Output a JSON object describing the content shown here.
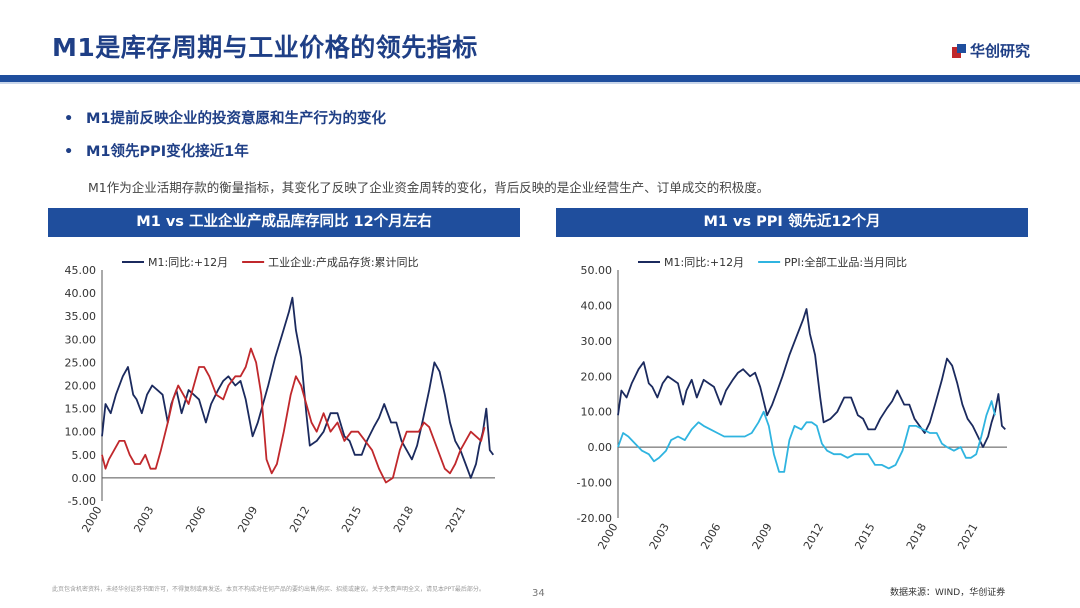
{
  "slide": {
    "title": "M1是库存周期与工业价格的领先指标",
    "brand": "华创研究",
    "bullets": [
      "M1提前反映企业的投资意愿和生产行为的变化",
      "M1领先PPI变化接近1年"
    ],
    "description": "M1作为企业活期存款的衡量指标，其变化了反映了企业资金周转的变化，背后反映的是企业经营生产、订单成交的积极度。",
    "disclaimer": "此页包含机密资料，未经华创证券书面许可，不得复制或再发送。本页不构成对任何产品的要约出售/购买、招揽或建议。关于免责声明全文，请见本PPT最后部分。",
    "page_number": "34",
    "source": "数据来源：WIND，华创证券",
    "colors": {
      "brand_blue": "#1f4e9d",
      "title_blue": "#1f3f86",
      "m1_navy": "#1b2a5e",
      "red": "#c0282c",
      "cyan": "#2fb4e0"
    }
  },
  "chart_data": [
    {
      "type": "line",
      "title": "M1 vs 工业企业产成品库存同比 12个月左右",
      "ylim": [
        -5,
        45
      ],
      "yticks": [
        -5,
        0,
        5,
        10,
        15,
        20,
        25,
        30,
        35,
        40,
        45
      ],
      "ytick_labels": [
        "-5.00",
        "0.00",
        "5.00",
        "10.00",
        "15.00",
        "20.00",
        "25.00",
        "30.00",
        "35.00",
        "40.00",
        "45.00"
      ],
      "xlim": [
        2000,
        2022.7
      ],
      "xticks": [
        2000,
        2003,
        2006,
        2009,
        2012,
        2015,
        2018,
        2021
      ],
      "xtick_labels": [
        "2000",
        "2003",
        "2006",
        "2009",
        "2012",
        "2015",
        "2018",
        "2021"
      ],
      "legend_position": "top",
      "series": [
        {
          "name": "M1:同比:+12月",
          "color": "#1b2a5e",
          "x": [
            2000.0,
            2000.2,
            2000.5,
            2000.8,
            2001.2,
            2001.5,
            2001.8,
            2002.0,
            2002.3,
            2002.6,
            2002.9,
            2003.2,
            2003.5,
            2003.8,
            2004.0,
            2004.3,
            2004.6,
            2005.0,
            2005.3,
            2005.6,
            2006.0,
            2006.3,
            2006.7,
            2007.0,
            2007.3,
            2007.7,
            2008.0,
            2008.3,
            2008.7,
            2009.0,
            2009.3,
            2009.6,
            2010.0,
            2010.4,
            2010.8,
            2011.0,
            2011.2,
            2011.5,
            2011.8,
            2012.0,
            2012.4,
            2012.8,
            2013.2,
            2013.6,
            2014.0,
            2014.3,
            2014.6,
            2015.0,
            2015.3,
            2015.7,
            2016.0,
            2016.3,
            2016.7,
            2017.0,
            2017.3,
            2017.6,
            2017.9,
            2018.2,
            2018.5,
            2018.9,
            2019.2,
            2019.5,
            2019.8,
            2020.1,
            2020.4,
            2020.7,
            2021.0,
            2021.3,
            2021.6,
            2021.8,
            2022.0,
            2022.2,
            2022.4,
            2022.6
          ],
          "values": [
            9,
            16,
            14,
            18,
            22,
            24,
            18,
            17,
            14,
            18,
            20,
            19,
            18,
            12,
            16,
            19,
            14,
            19,
            18,
            17,
            12,
            16,
            19,
            21,
            22,
            20,
            21,
            17,
            9,
            12,
            16,
            20,
            26,
            31,
            36,
            39,
            32,
            26,
            14,
            7,
            8,
            10,
            14,
            14,
            9,
            8,
            5,
            5,
            8,
            11,
            13,
            16,
            12,
            12,
            8,
            6,
            4,
            7,
            12,
            19,
            25,
            23,
            18,
            12,
            8,
            6,
            3,
            0,
            3,
            7,
            10,
            15,
            6,
            5
          ]
        },
        {
          "name": "工业企业:产成品存货:累计同比",
          "color": "#c0282c",
          "x": [
            2000.0,
            2000.2,
            2000.4,
            2000.7,
            2001.0,
            2001.3,
            2001.6,
            2001.9,
            2002.2,
            2002.5,
            2002.8,
            2003.1,
            2003.4,
            2003.8,
            2004.1,
            2004.4,
            2004.7,
            2005.0,
            2005.3,
            2005.6,
            2005.9,
            2006.2,
            2006.6,
            2007.0,
            2007.3,
            2007.7,
            2008.0,
            2008.3,
            2008.6,
            2008.9,
            2009.2,
            2009.5,
            2009.8,
            2010.1,
            2010.5,
            2010.9,
            2011.2,
            2011.5,
            2011.8,
            2012.1,
            2012.4,
            2012.8,
            2013.2,
            2013.6,
            2014.0,
            2014.4,
            2014.8,
            2015.2,
            2015.6,
            2016.0,
            2016.4,
            2016.8,
            2017.2,
            2017.6,
            2018.0,
            2018.3,
            2018.6,
            2018.9,
            2019.2,
            2019.5,
            2019.8,
            2020.1,
            2020.4,
            2020.7,
            2021.0,
            2021.3,
            2021.6,
            2021.9,
            2022.1
          ],
          "values": [
            5,
            2,
            4,
            6,
            8,
            8,
            5,
            3,
            3,
            5,
            2,
            2,
            6,
            12,
            17,
            20,
            18,
            16,
            20,
            24,
            24,
            22,
            18,
            17,
            20,
            22,
            22,
            24,
            28,
            25,
            18,
            4,
            1,
            3,
            10,
            18,
            22,
            20,
            16,
            12,
            10,
            14,
            10,
            12,
            8,
            10,
            10,
            8,
            6,
            2,
            -1,
            0,
            6,
            10,
            10,
            10,
            12,
            11,
            8,
            5,
            2,
            1,
            3,
            6,
            8,
            10,
            9,
            8,
            11
          ]
        }
      ]
    },
    {
      "type": "line",
      "title": "M1 vs PPI 领先近12个月",
      "ylim": [
        -20,
        50
      ],
      "yticks": [
        -20,
        -10,
        0,
        10,
        20,
        30,
        40,
        50
      ],
      "ytick_labels": [
        "-20.00",
        "-10.00",
        "0.00",
        "10.00",
        "20.00",
        "30.00",
        "40.00",
        "50.00"
      ],
      "xlim": [
        2000,
        2022.7
      ],
      "xticks": [
        2000,
        2003,
        2006,
        2009,
        2012,
        2015,
        2018,
        2021
      ],
      "xtick_labels": [
        "2000",
        "2003",
        "2006",
        "2009",
        "2012",
        "2015",
        "2018",
        "2021"
      ],
      "legend_position": "top",
      "series": [
        {
          "name": "M1:同比:+12月",
          "color": "#1b2a5e",
          "x": [
            2000.0,
            2000.2,
            2000.5,
            2000.8,
            2001.2,
            2001.5,
            2001.8,
            2002.0,
            2002.3,
            2002.6,
            2002.9,
            2003.2,
            2003.5,
            2003.8,
            2004.0,
            2004.3,
            2004.6,
            2005.0,
            2005.3,
            2005.6,
            2006.0,
            2006.3,
            2006.7,
            2007.0,
            2007.3,
            2007.7,
            2008.0,
            2008.3,
            2008.7,
            2009.0,
            2009.3,
            2009.6,
            2010.0,
            2010.4,
            2010.8,
            2011.0,
            2011.2,
            2011.5,
            2011.8,
            2012.0,
            2012.4,
            2012.8,
            2013.2,
            2013.6,
            2014.0,
            2014.3,
            2014.6,
            2015.0,
            2015.3,
            2015.7,
            2016.0,
            2016.3,
            2016.7,
            2017.0,
            2017.3,
            2017.6,
            2017.9,
            2018.2,
            2018.5,
            2018.9,
            2019.2,
            2019.5,
            2019.8,
            2020.1,
            2020.4,
            2020.7,
            2021.0,
            2021.3,
            2021.6,
            2021.8,
            2022.0,
            2022.2,
            2022.4,
            2022.6
          ],
          "values": [
            9,
            16,
            14,
            18,
            22,
            24,
            18,
            17,
            14,
            18,
            20,
            19,
            18,
            12,
            16,
            19,
            14,
            19,
            18,
            17,
            12,
            16,
            19,
            21,
            22,
            20,
            21,
            17,
            9,
            12,
            16,
            20,
            26,
            31,
            36,
            39,
            32,
            26,
            14,
            7,
            8,
            10,
            14,
            14,
            9,
            8,
            5,
            5,
            8,
            11,
            13,
            16,
            12,
            12,
            8,
            6,
            4,
            7,
            12,
            19,
            25,
            23,
            18,
            12,
            8,
            6,
            3,
            0,
            3,
            7,
            10,
            15,
            6,
            5
          ]
        },
        {
          "name": "PPI:全部工业品:当月同比",
          "color": "#2fb4e0",
          "x": [
            2000.0,
            2000.3,
            2000.6,
            2001.0,
            2001.4,
            2001.8,
            2002.1,
            2002.4,
            2002.8,
            2003.1,
            2003.5,
            2003.9,
            2004.3,
            2004.7,
            2005.0,
            2005.4,
            2005.8,
            2006.2,
            2006.6,
            2007.0,
            2007.4,
            2007.8,
            2008.2,
            2008.5,
            2008.8,
            2009.1,
            2009.4,
            2009.7,
            2010.0,
            2010.3,
            2010.7,
            2011.0,
            2011.3,
            2011.6,
            2011.9,
            2012.2,
            2012.6,
            2013.0,
            2013.4,
            2013.8,
            2014.2,
            2014.6,
            2015.0,
            2015.4,
            2015.8,
            2016.2,
            2016.6,
            2017.0,
            2017.4,
            2017.8,
            2018.2,
            2018.6,
            2018.9,
            2019.2,
            2019.6,
            2020.0,
            2020.3,
            2020.6,
            2020.9,
            2021.2,
            2021.5,
            2021.8,
            2022.0
          ],
          "values": [
            0,
            4,
            3,
            1,
            -1,
            -2,
            -4,
            -3,
            -1,
            2,
            3,
            2,
            5,
            7,
            6,
            5,
            4,
            3,
            3,
            3,
            3,
            4,
            7,
            10,
            6,
            -2,
            -7,
            -7,
            2,
            6,
            5,
            7,
            7,
            6,
            1,
            -1,
            -2,
            -2,
            -3,
            -2,
            -2,
            -2,
            -5,
            -5,
            -6,
            -5,
            -1,
            6,
            6,
            5,
            4,
            4,
            1,
            0,
            -1,
            0,
            -3,
            -3,
            -2,
            3,
            9,
            13,
            9
          ]
        }
      ]
    }
  ]
}
